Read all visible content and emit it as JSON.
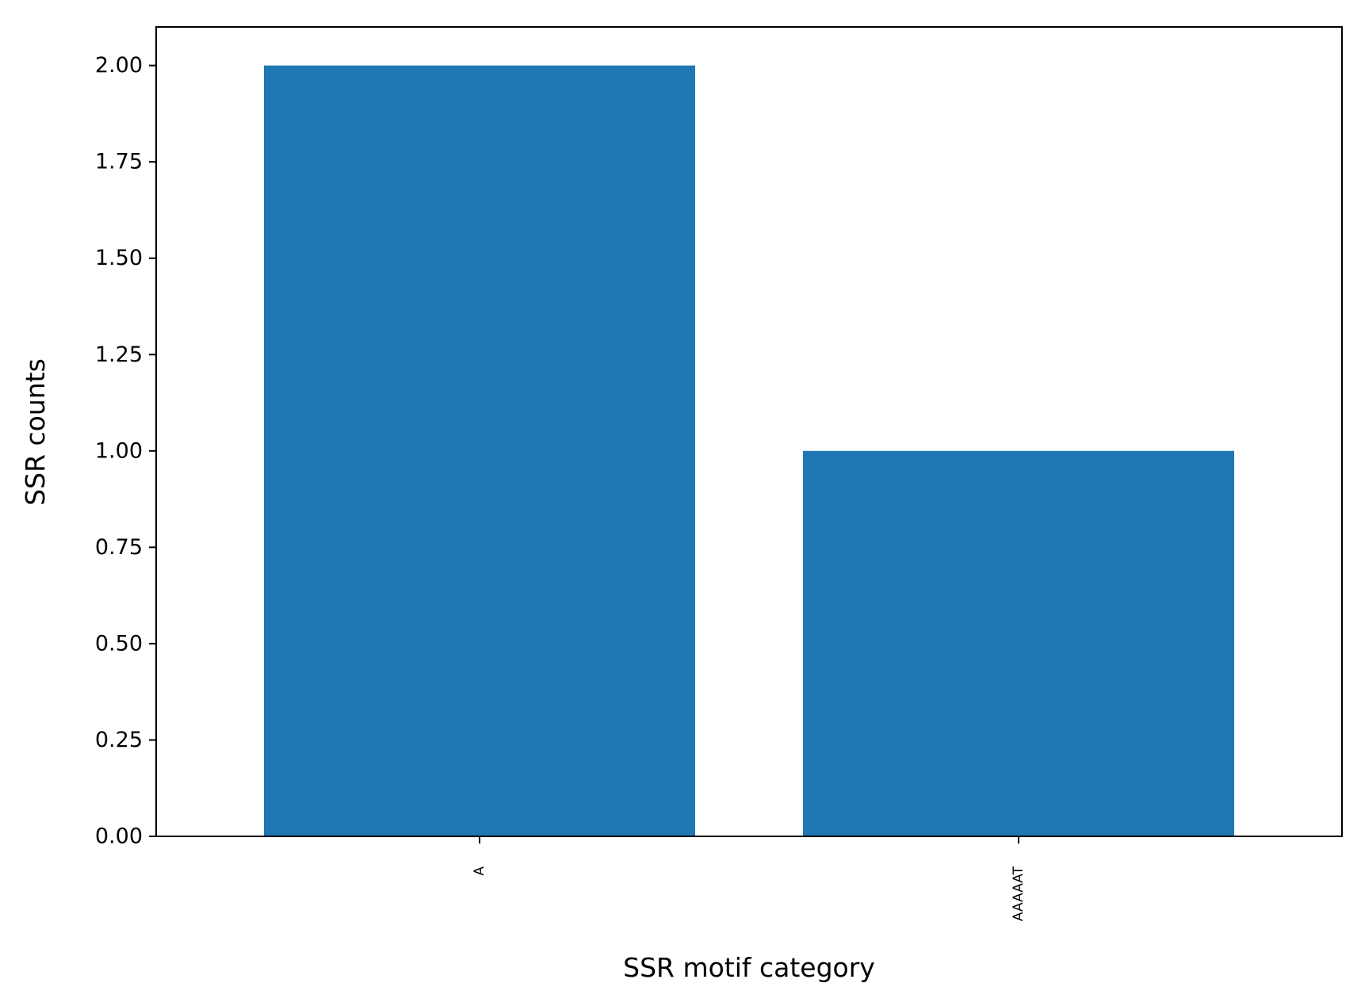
{
  "chart_data": {
    "type": "bar",
    "title": "",
    "xlabel": "SSR motif category",
    "ylabel": "SSR counts",
    "categories": [
      "A",
      "AAAAAT"
    ],
    "values": [
      2,
      1
    ],
    "ylim": [
      0,
      2.1
    ],
    "yticks": [
      0,
      0.25,
      0.5,
      0.75,
      1.0,
      1.25,
      1.5,
      1.75,
      2.0
    ],
    "ytick_labels": [
      "0.00",
      "0.25",
      "0.50",
      "0.75",
      "1.00",
      "1.25",
      "1.50",
      "1.75",
      "2.00"
    ],
    "grid": false,
    "legend": "none",
    "bar_color": "#1f77b4"
  }
}
